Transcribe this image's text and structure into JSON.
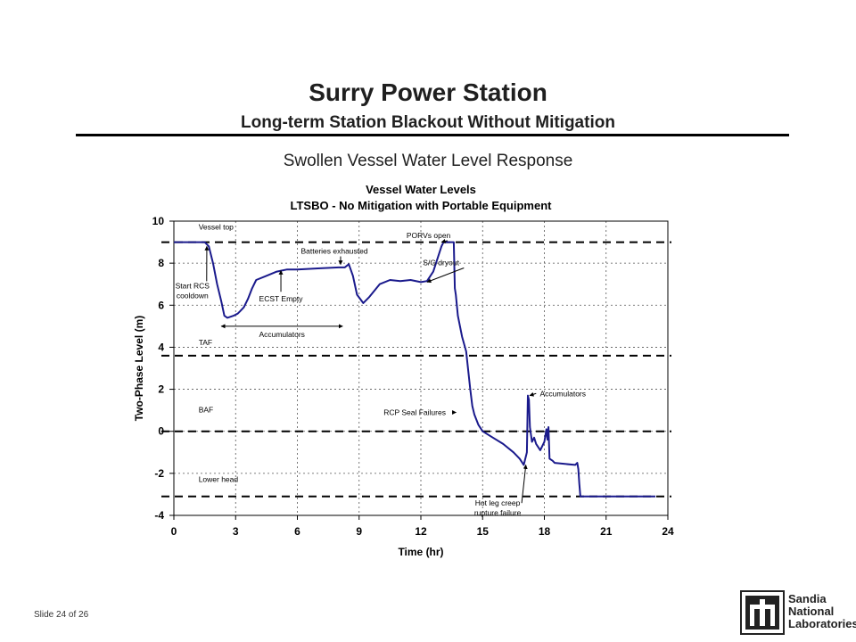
{
  "slide": {
    "title": "Surry Power Station",
    "subtitle": "Long-term Station Blackout Without Mitigation",
    "chart_heading": "Swollen Vessel Water Level Response",
    "slide_number": "Slide 24 of 26",
    "logo": {
      "line1": "Sandia",
      "line2": "National",
      "line3": "Laboratories"
    }
  },
  "colors": {
    "series": "#1a1a8c",
    "reference": "#000000",
    "grid": "#555555"
  },
  "chart_data": {
    "type": "line",
    "title": "Vessel Water Levels",
    "subtitle": "LTSBO - No Mitigation with Portable Equipment",
    "xlabel": "Time (hr)",
    "ylabel": "Two-Phase Level (m)",
    "xlim": [
      0,
      24
    ],
    "ylim": [
      -4,
      10
    ],
    "xticks": [
      0,
      3,
      6,
      9,
      12,
      15,
      18,
      21,
      24
    ],
    "yticks": [
      -4,
      -2,
      0,
      2,
      4,
      6,
      8,
      10
    ],
    "grid": true,
    "series": [
      {
        "x": [
          0,
          1.4,
          1.5,
          1.7,
          1.9,
          2.1,
          2.3,
          2.45,
          2.6,
          2.9,
          3.1,
          3.2,
          3.4,
          3.6,
          3.8,
          4.0,
          4.5,
          5.0,
          5.5,
          6.0,
          7.0,
          8.0,
          8.3,
          8.5,
          8.7,
          8.9,
          9.2,
          9.5,
          10.0,
          10.5,
          11.0,
          11.5,
          12.0,
          12.3,
          12.6,
          12.8,
          13.0,
          13.1,
          13.6,
          13.65,
          13.7,
          13.8,
          14.0,
          14.2,
          14.4,
          14.5,
          14.6,
          14.8,
          15.0,
          15.5,
          16.0,
          16.5,
          16.8,
          17.0,
          17.15,
          17.2,
          17.25,
          17.3,
          17.4,
          17.5,
          17.6,
          17.8,
          18.0,
          18.1,
          18.15,
          18.2,
          18.25,
          18.4,
          18.5,
          19.0,
          19.5,
          19.6,
          19.65,
          19.7,
          19.75,
          19.8,
          20.0,
          21.0,
          22.0,
          23.0,
          23.4
        ],
        "y": [
          9.0,
          9.0,
          9.0,
          8.8,
          8.0,
          7.0,
          6.2,
          5.5,
          5.4,
          5.5,
          5.6,
          5.7,
          5.9,
          6.3,
          6.8,
          7.2,
          7.4,
          7.6,
          7.7,
          7.7,
          7.75,
          7.8,
          7.8,
          7.95,
          7.4,
          6.5,
          6.1,
          6.4,
          7.0,
          7.2,
          7.15,
          7.2,
          7.1,
          7.15,
          7.6,
          8.2,
          8.8,
          9.0,
          9.0,
          6.8,
          6.5,
          5.5,
          4.5,
          3.8,
          2.0,
          1.2,
          0.8,
          0.3,
          0.0,
          -0.3,
          -0.6,
          -1.0,
          -1.3,
          -1.6,
          -1.0,
          1.7,
          1.5,
          0.2,
          -0.5,
          -0.3,
          -0.6,
          -0.9,
          -0.5,
          0.1,
          -0.4,
          0.2,
          -1.3,
          -1.4,
          -1.5,
          -1.55,
          -1.6,
          -1.5,
          -1.8,
          -2.5,
          -3.1,
          -3.1,
          -3.1,
          -3.1,
          -3.1,
          -3.1,
          -3.1
        ]
      }
    ],
    "reference_lines": [
      {
        "name": "Vessel top",
        "y": 9.0
      },
      {
        "name": "TAF",
        "y": 3.6
      },
      {
        "name": "BAF",
        "y": 0.0
      },
      {
        "name": "Lower head",
        "y": -3.1
      }
    ],
    "annotations": [
      {
        "text": "Start RCS cooldown",
        "x": 1.6,
        "y": 8.8,
        "label_x": 0.9,
        "label_y": 6.8
      },
      {
        "text": "Batteries exhausted",
        "x": 8.1,
        "y": 7.85,
        "label_x": 7.8,
        "label_y": 8.45
      },
      {
        "text": "ECST Empty",
        "x": 5.2,
        "y": 7.65,
        "label_x": 5.2,
        "label_y": 6.3
      },
      {
        "text": "Accumulators",
        "x_start": 2.3,
        "x_end": 8.2,
        "y": 5.0
      },
      {
        "text": "PORVs open",
        "x": 13.0,
        "y": 9.0,
        "label_x": 11.3,
        "label_y": 9.2
      },
      {
        "text": "S/G dryout",
        "x": 12.3,
        "y": 7.1,
        "label_x": 12.1,
        "label_y": 7.9
      },
      {
        "text": "RCP Seal Failures",
        "x": 13.8,
        "y": 0.9,
        "label_x": 11.7,
        "label_y": 0.9
      },
      {
        "text": "Accumulators",
        "x": 17.2,
        "y": 1.7,
        "label_x": 18.9,
        "label_y": 1.8
      },
      {
        "text": "Hot leg creep rupture failure",
        "x": 17.1,
        "y": -1.6,
        "label_x": 14.3,
        "label_y": -4.05
      },
      {
        "text": "Vessel top",
        "label_x": 1.2,
        "label_y": 9.6
      },
      {
        "text": "TAF",
        "label_x": 1.2,
        "label_y": 4.1
      },
      {
        "text": "BAF",
        "label_x": 1.2,
        "label_y": 0.9
      },
      {
        "text": "Lower head",
        "label_x": 1.2,
        "label_y": -2.4
      }
    ]
  }
}
